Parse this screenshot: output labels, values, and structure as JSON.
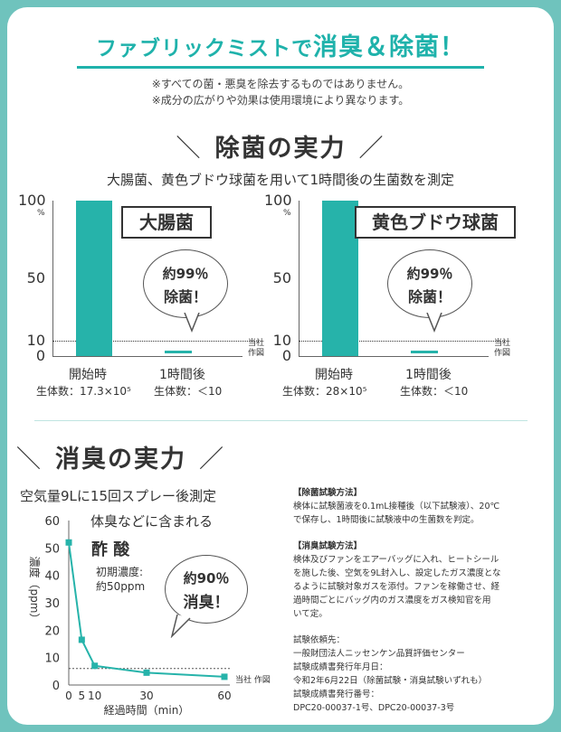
{
  "banner": {
    "prefix": "ファブリックミストで",
    "emphasis": "消臭＆除菌！"
  },
  "disclaimers": [
    "※すべての菌・悪臭を除去するものではありません。",
    "※成分の広がりや効果は使用環境により異なります。"
  ],
  "sterilization": {
    "title": "除菌の実力",
    "subtitle": "大腸菌、黄色ブドウ球菌を用いて1時間後の生菌数を測定",
    "source_note": "当社\n作図",
    "percent_unit": "%",
    "charts": [
      {
        "label": "大腸菌",
        "bubble_line1": "約99％",
        "bubble_line2": "除菌！"
      },
      {
        "label": "黄色ブドウ球菌",
        "bubble_line1": "約99％",
        "bubble_line2": "除菌！"
      }
    ]
  },
  "deodorization": {
    "title": "消臭の実力",
    "subtitle": "空気量9Lに15回スプレー後測定",
    "odor_caption": "体臭などに含まれる",
    "odor_name": "酢 酸",
    "initial_label": "初期濃度:",
    "initial_value": "約50ppm",
    "bubble_line1": "約90％",
    "bubble_line2": "消臭！",
    "source_note": "当社\n作図"
  },
  "methods": {
    "sterilization_head": "【除菌試験方法】",
    "sterilization_body": [
      "検体に試験菌液を0.1mL接種後（以下試験液）、20℃",
      "で保存し、1時間後に試験液中の生菌数を判定。"
    ],
    "deodor_head": "【消臭試験方法】",
    "deodor_body": [
      "検体及びファンをエアーバッグに入れ、ヒートシール",
      "を施した後、空気を9L封入し、設定したガス濃度とな",
      "るように試験対象ガスを添付。ファンを稼働させ、経",
      "過時間ごとにバッグ内のガス濃度をガス検知官を用",
      "いて定。"
    ],
    "requester_head": "試験依頼先：",
    "requester": "一般財団法人ニッセンケン品質評価センター",
    "date_head": "試験成績書発行年月日：",
    "date": "令和2年6月22日（除菌試験・消臭試験いずれも）",
    "number_head": "試験成績書発行番号：",
    "number": "DPC20-00037-1号、DPC20-00037-3号"
  },
  "chart_data": [
    {
      "type": "bar",
      "title": "大腸菌",
      "categories": [
        "開始時",
        "1時間後"
      ],
      "category_notes": [
        "生体数：17.3×10⁵",
        "生体数：＜10"
      ],
      "values": [
        100,
        1
      ],
      "ylim": [
        0,
        100
      ],
      "yticks": [
        0,
        10,
        50,
        100
      ],
      "reference_line": 10,
      "color": "#26b3aa"
    },
    {
      "type": "bar",
      "title": "黄色ブドウ球菌",
      "categories": [
        "開始時",
        "1時間後"
      ],
      "category_notes": [
        "生体数：28×10⁵",
        "生体数：＜10"
      ],
      "values": [
        100,
        1
      ],
      "ylim": [
        0,
        100
      ],
      "yticks": [
        0,
        10,
        50,
        100
      ],
      "reference_line": 10,
      "color": "#26b3aa"
    },
    {
      "type": "line",
      "x": [
        0,
        5,
        10,
        30,
        60
      ],
      "y": [
        52,
        16.5,
        7,
        4.5,
        3
      ],
      "xlabel": "経過時間（min）",
      "ylabel": "濃度（ppm）",
      "xlim": [
        0,
        60
      ],
      "ylim": [
        0,
        60
      ],
      "xticks": [
        0,
        5,
        10,
        30,
        60
      ],
      "yticks": [
        0,
        10,
        20,
        30,
        40,
        50,
        60
      ],
      "reference_line": 6,
      "color": "#26b3aa"
    }
  ]
}
